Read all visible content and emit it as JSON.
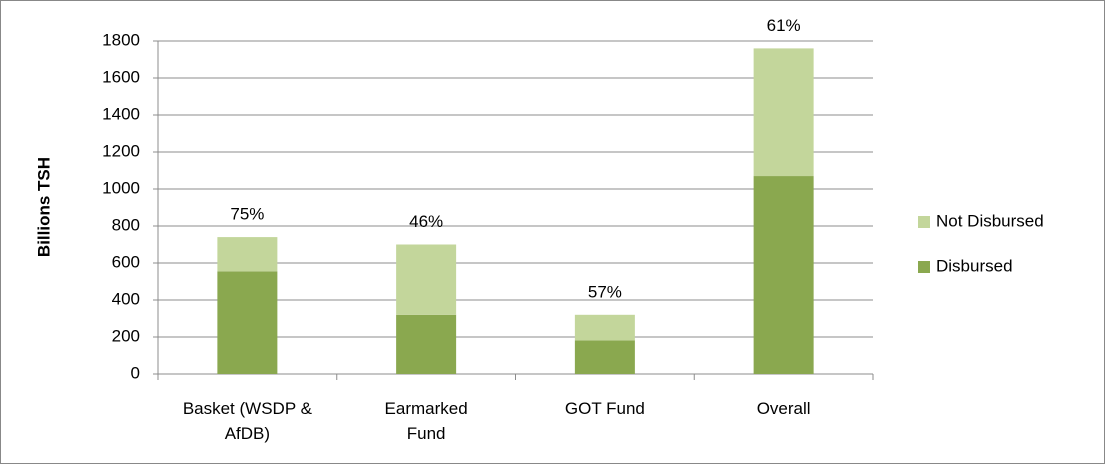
{
  "chart_data": {
    "type": "stacked_bar",
    "y_label": "Billions TSH",
    "categories": [
      "Basket (WSDP &\nAfDB)",
      "Earmarked\nFund",
      "GOT Fund",
      "Overall"
    ],
    "series": [
      {
        "name": "Disbursed",
        "color": "#8aa84f",
        "values": [
          555,
          320,
          182,
          1070
        ]
      },
      {
        "name": "Not Disbursed",
        "color": "#c3d69b",
        "values": [
          185,
          380,
          138,
          690
        ]
      }
    ],
    "annotations": [
      "75%",
      "46%",
      "57%",
      "61%"
    ],
    "ylim": [
      0,
      1800
    ],
    "yticks": [
      0,
      200,
      400,
      600,
      800,
      1000,
      1200,
      1400,
      1600,
      1800
    ],
    "grid": true,
    "legend": "right"
  }
}
